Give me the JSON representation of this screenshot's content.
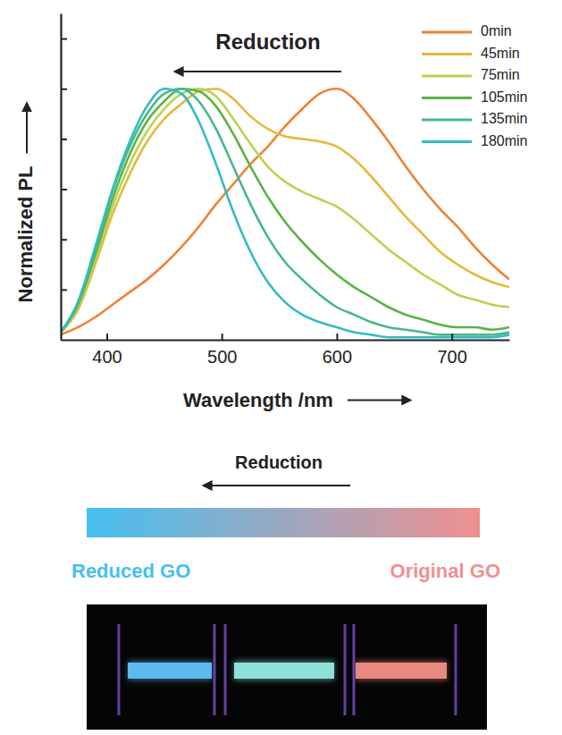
{
  "chart_data": {
    "type": "line",
    "x_label": "Wavelength /nm",
    "y_label": "Normalized PL",
    "annotations": [
      {
        "text": "Reduction"
      }
    ],
    "x": [
      360,
      375,
      390,
      405,
      420,
      435,
      450,
      465,
      480,
      495,
      510,
      525,
      540,
      555,
      570,
      585,
      600,
      615,
      630,
      645,
      660,
      675,
      690,
      705,
      720,
      735,
      750
    ],
    "series": [
      {
        "name": "0min",
        "color": "#ee8335",
        "values": [
          0.02,
          0.05,
          0.09,
          0.14,
          0.19,
          0.24,
          0.3,
          0.37,
          0.45,
          0.54,
          0.62,
          0.7,
          0.77,
          0.85,
          0.92,
          0.98,
          1.0,
          0.96,
          0.88,
          0.79,
          0.69,
          0.6,
          0.52,
          0.45,
          0.37,
          0.3,
          0.24
        ]
      },
      {
        "name": "45min",
        "color": "#e6b83e",
        "values": [
          0.03,
          0.12,
          0.3,
          0.5,
          0.66,
          0.79,
          0.88,
          0.94,
          0.99,
          1.0,
          0.96,
          0.89,
          0.84,
          0.81,
          0.8,
          0.79,
          0.77,
          0.72,
          0.65,
          0.57,
          0.49,
          0.42,
          0.35,
          0.3,
          0.26,
          0.23,
          0.21
        ]
      },
      {
        "name": "75min",
        "color": "#b8d450",
        "values": [
          0.03,
          0.13,
          0.32,
          0.53,
          0.7,
          0.83,
          0.92,
          0.98,
          1.0,
          0.97,
          0.88,
          0.78,
          0.69,
          0.63,
          0.59,
          0.56,
          0.53,
          0.48,
          0.42,
          0.36,
          0.31,
          0.26,
          0.22,
          0.18,
          0.16,
          0.14,
          0.13
        ]
      },
      {
        "name": "105min",
        "color": "#5cb248",
        "values": [
          0.03,
          0.14,
          0.34,
          0.56,
          0.74,
          0.87,
          0.95,
          1.0,
          0.99,
          0.93,
          0.82,
          0.69,
          0.57,
          0.47,
          0.39,
          0.32,
          0.26,
          0.21,
          0.17,
          0.13,
          0.1,
          0.08,
          0.06,
          0.05,
          0.05,
          0.04,
          0.05
        ]
      },
      {
        "name": "135min",
        "color": "#45b88a",
        "values": [
          0.03,
          0.15,
          0.36,
          0.59,
          0.77,
          0.9,
          0.98,
          1.0,
          0.95,
          0.84,
          0.69,
          0.54,
          0.41,
          0.31,
          0.24,
          0.18,
          0.13,
          0.1,
          0.07,
          0.05,
          0.04,
          0.03,
          0.02,
          0.02,
          0.02,
          0.02,
          0.03
        ]
      },
      {
        "name": "180min",
        "color": "#33bcc2",
        "values": [
          0.03,
          0.15,
          0.37,
          0.6,
          0.79,
          0.93,
          1.0,
          0.98,
          0.87,
          0.7,
          0.51,
          0.35,
          0.23,
          0.15,
          0.1,
          0.07,
          0.05,
          0.03,
          0.02,
          0.01,
          0.01,
          0.01,
          0.01,
          0.01,
          0.01,
          0.01,
          0.02
        ]
      }
    ],
    "xlim": [
      360,
      750
    ],
    "xticks": [
      400,
      500,
      600,
      700
    ],
    "ylim": [
      0,
      1.3
    ],
    "yticks": [
      0.2,
      0.4,
      0.6,
      0.8,
      1.0,
      1.2
    ],
    "tick_labels": "x",
    "grid": false,
    "legend": "top-right"
  },
  "color_bar": {
    "title": "Reduction",
    "labels": [
      "Reduced GO",
      "Original GO"
    ],
    "colors": [
      "#45c0f0",
      "#f0908f"
    ]
  }
}
